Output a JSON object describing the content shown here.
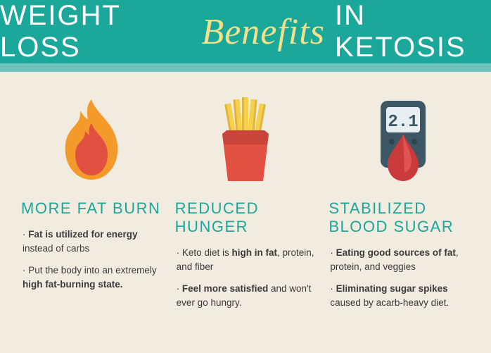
{
  "header": {
    "title_left": "WEIGHT LOSS",
    "title_mid": "Benefits",
    "title_right": "IN KETOSIS",
    "bg_color": "#1ba89b",
    "accent_color": "#6ec4bc",
    "script_color": "#f2e08a",
    "sans_color": "#ffffff"
  },
  "page": {
    "bg_color": "#f1ebe0",
    "heading_color": "#1ba89b",
    "text_color": "#3b3b3b"
  },
  "columns": [
    {
      "icon": "flame",
      "heading": "MORE FAT BURN",
      "bullets": [
        {
          "html": "· <b>Fat is utilized for energy</b> instead of carbs"
        },
        {
          "html": "· Put the body into an extremely <b>high fat-burning state.</b>"
        }
      ]
    },
    {
      "icon": "fries",
      "heading": "REDUCED HUNGER",
      "bullets": [
        {
          "html": "· Keto diet is <b>high in fat</b>, protein, and fiber"
        },
        {
          "html": "· <b>Feel more satisfied</b> and won't ever go hungry."
        }
      ]
    },
    {
      "icon": "glucometer",
      "heading": "STABILIZED BLOOD SUGAR",
      "bullets": [
        {
          "html": "· <b>Eating good sources of fat</b>, protein, and veggies"
        },
        {
          "html": "· <b>Eliminating sugar spikes</b> caused by acarb-heavy diet."
        }
      ]
    }
  ],
  "icons": {
    "flame": {
      "outer": "#f39a2b",
      "inner": "#e15041"
    },
    "fries": {
      "box": "#e15041",
      "box_shadow": "#c9443a",
      "fry": "#f6cf4b",
      "fry_shadow": "#e0b63e"
    },
    "glucometer": {
      "body": "#3d5766",
      "screen_bg": "#e7eff2",
      "reading": "2.1",
      "drop": "#c93b3b",
      "drop_hi": "#e15252"
    }
  }
}
